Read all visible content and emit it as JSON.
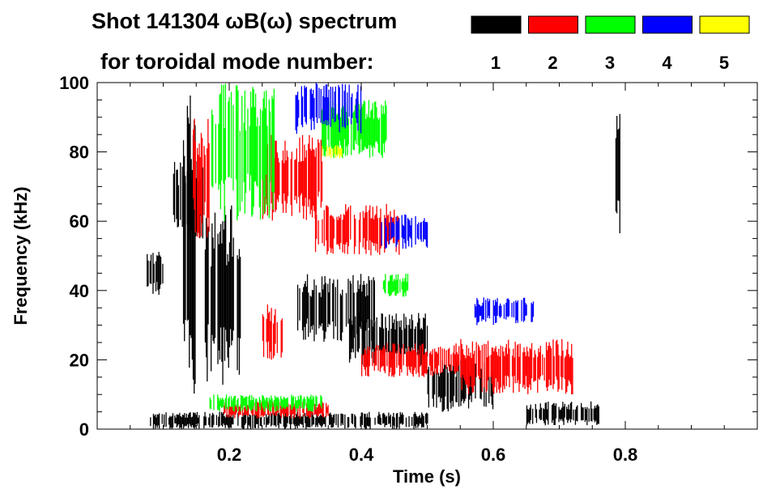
{
  "chart_data": {
    "type": "heatmap",
    "title": "Shot 141304 ωB(ω) spectrum",
    "subtitle": "for toroidal mode number:",
    "xlabel": "Time (s)",
    "ylabel": "Frequency (kHz)",
    "xlim": [
      0,
      1.0
    ],
    "ylim": [
      0,
      100
    ],
    "xticks": [
      "0.2",
      "0.4",
      "0.6",
      "0.8"
    ],
    "xtick_values": [
      0.2,
      0.4,
      0.6,
      0.8
    ],
    "yticks": [
      "0",
      "20",
      "40",
      "60",
      "80",
      "100"
    ],
    "ytick_values": [
      0,
      20,
      40,
      60,
      80,
      100
    ],
    "legend": [
      {
        "label": "1",
        "color": "#000000"
      },
      {
        "label": "2",
        "color": "#ff0000"
      },
      {
        "label": "3",
        "color": "#00ff00"
      },
      {
        "label": "4",
        "color": "#0000ff"
      },
      {
        "label": "5",
        "color": "#ffff00"
      }
    ],
    "regions": [
      {
        "mode": 1,
        "t": [
          0.075,
          0.1
        ],
        "f": [
          38,
          52
        ]
      },
      {
        "mode": 1,
        "t": [
          0.115,
          0.16
        ],
        "f": [
          55,
          78
        ]
      },
      {
        "mode": 1,
        "t": [
          0.13,
          0.15
        ],
        "f": [
          10,
          100
        ]
      },
      {
        "mode": 1,
        "t": [
          0.16,
          0.22
        ],
        "f": [
          12,
          65
        ]
      },
      {
        "mode": 1,
        "t": [
          0.3,
          0.42
        ],
        "f": [
          25,
          45
        ]
      },
      {
        "mode": 1,
        "t": [
          0.38,
          0.5
        ],
        "f": [
          18,
          34
        ]
      },
      {
        "mode": 1,
        "t": [
          0.5,
          0.6
        ],
        "f": [
          5,
          20
        ]
      },
      {
        "mode": 1,
        "t": [
          0.65,
          0.76
        ],
        "f": [
          1,
          8
        ]
      },
      {
        "mode": 1,
        "t": [
          0.785,
          0.792
        ],
        "f": [
          55,
          95
        ]
      },
      {
        "mode": 1,
        "t": [
          0.08,
          0.5
        ],
        "f": [
          0,
          5
        ]
      },
      {
        "mode": 2,
        "t": [
          0.145,
          0.17
        ],
        "f": [
          55,
          90
        ]
      },
      {
        "mode": 2,
        "t": [
          0.25,
          0.34
        ],
        "f": [
          60,
          85
        ]
      },
      {
        "mode": 2,
        "t": [
          0.33,
          0.46
        ],
        "f": [
          50,
          65
        ]
      },
      {
        "mode": 2,
        "t": [
          0.25,
          0.28
        ],
        "f": [
          20,
          36
        ]
      },
      {
        "mode": 2,
        "t": [
          0.4,
          0.55
        ],
        "f": [
          15,
          25
        ]
      },
      {
        "mode": 2,
        "t": [
          0.55,
          0.72
        ],
        "f": [
          10,
          26
        ]
      },
      {
        "mode": 2,
        "t": [
          0.19,
          0.35
        ],
        "f": [
          3,
          8
        ]
      },
      {
        "mode": 3,
        "t": [
          0.17,
          0.27
        ],
        "f": [
          60,
          100
        ]
      },
      {
        "mode": 3,
        "t": [
          0.34,
          0.44
        ],
        "f": [
          78,
          95
        ]
      },
      {
        "mode": 3,
        "t": [
          0.43,
          0.47
        ],
        "f": [
          38,
          45
        ]
      },
      {
        "mode": 3,
        "t": [
          0.17,
          0.34
        ],
        "f": [
          5,
          10
        ]
      },
      {
        "mode": 4,
        "t": [
          0.3,
          0.4
        ],
        "f": [
          85,
          100
        ]
      },
      {
        "mode": 4,
        "t": [
          0.43,
          0.5
        ],
        "f": [
          52,
          62
        ]
      },
      {
        "mode": 4,
        "t": [
          0.57,
          0.66
        ],
        "f": [
          30,
          38
        ]
      },
      {
        "mode": 5,
        "t": [
          0.34,
          0.37
        ],
        "f": [
          78,
          82
        ]
      }
    ]
  }
}
